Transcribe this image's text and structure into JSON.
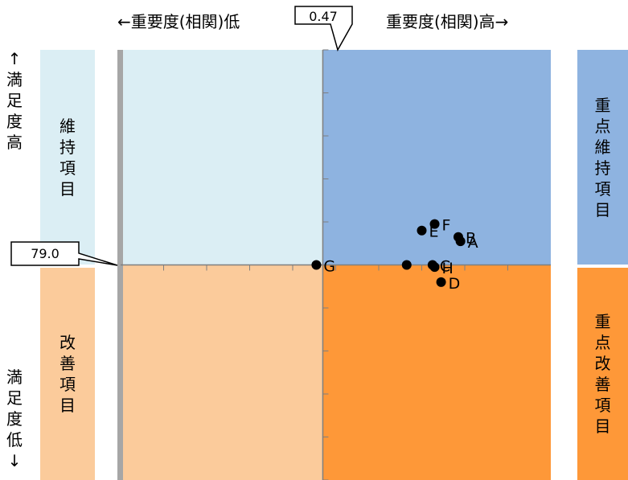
{
  "header": {
    "left_label": "←重要度(相関)低",
    "right_label": "重要度(相関)高→"
  },
  "side_axis": {
    "satisfaction_high": [
      "↑",
      "満",
      "足",
      "度",
      "高"
    ],
    "satisfaction_low": [
      "満",
      "足",
      "度",
      "低",
      "↓"
    ]
  },
  "quadrants": {
    "maintain": {
      "label_chars": [
        "維",
        "持",
        "項",
        "目"
      ],
      "color": "#dbeef4"
    },
    "improve": {
      "label_chars": [
        "改",
        "善",
        "項",
        "目"
      ],
      "color": "#fbcb9b"
    },
    "key_maintain": {
      "label_chars": [
        "重",
        "点",
        "維",
        "持",
        "項",
        "目"
      ],
      "color": "#8eb3e0"
    },
    "key_improve": {
      "label_chars": [
        "重",
        "点",
        "改",
        "善",
        "項",
        "目"
      ],
      "color": "#fe9838"
    }
  },
  "chart_data": {
    "type": "scatter",
    "x_threshold_label": "0.47",
    "y_threshold_label": "79.0",
    "x_threshold": 0.47,
    "y_threshold": 79.0,
    "xlim": [
      0.0,
      1.0
    ],
    "ylim": [
      69.0,
      89.0
    ],
    "points": [
      {
        "label": "A",
        "x": 0.79,
        "y": 80.1
      },
      {
        "label": "B",
        "x": 0.785,
        "y": 80.3
      },
      {
        "label": "C",
        "x": 0.725,
        "y": 79.0
      },
      {
        "label": "D",
        "x": 0.745,
        "y": 78.2
      },
      {
        "label": "E",
        "x": 0.7,
        "y": 80.6
      },
      {
        "label": "F",
        "x": 0.73,
        "y": 80.9
      },
      {
        "label": "G",
        "x": 0.455,
        "y": 79.0
      },
      {
        "label": "H",
        "x": 0.73,
        "y": 78.9
      },
      {
        "label": "",
        "x": 0.665,
        "y": 79.0
      }
    ],
    "colors": {
      "point": "#000000",
      "grid_axis": "#7f7f7f",
      "left_border": "#a6a6a6"
    }
  }
}
